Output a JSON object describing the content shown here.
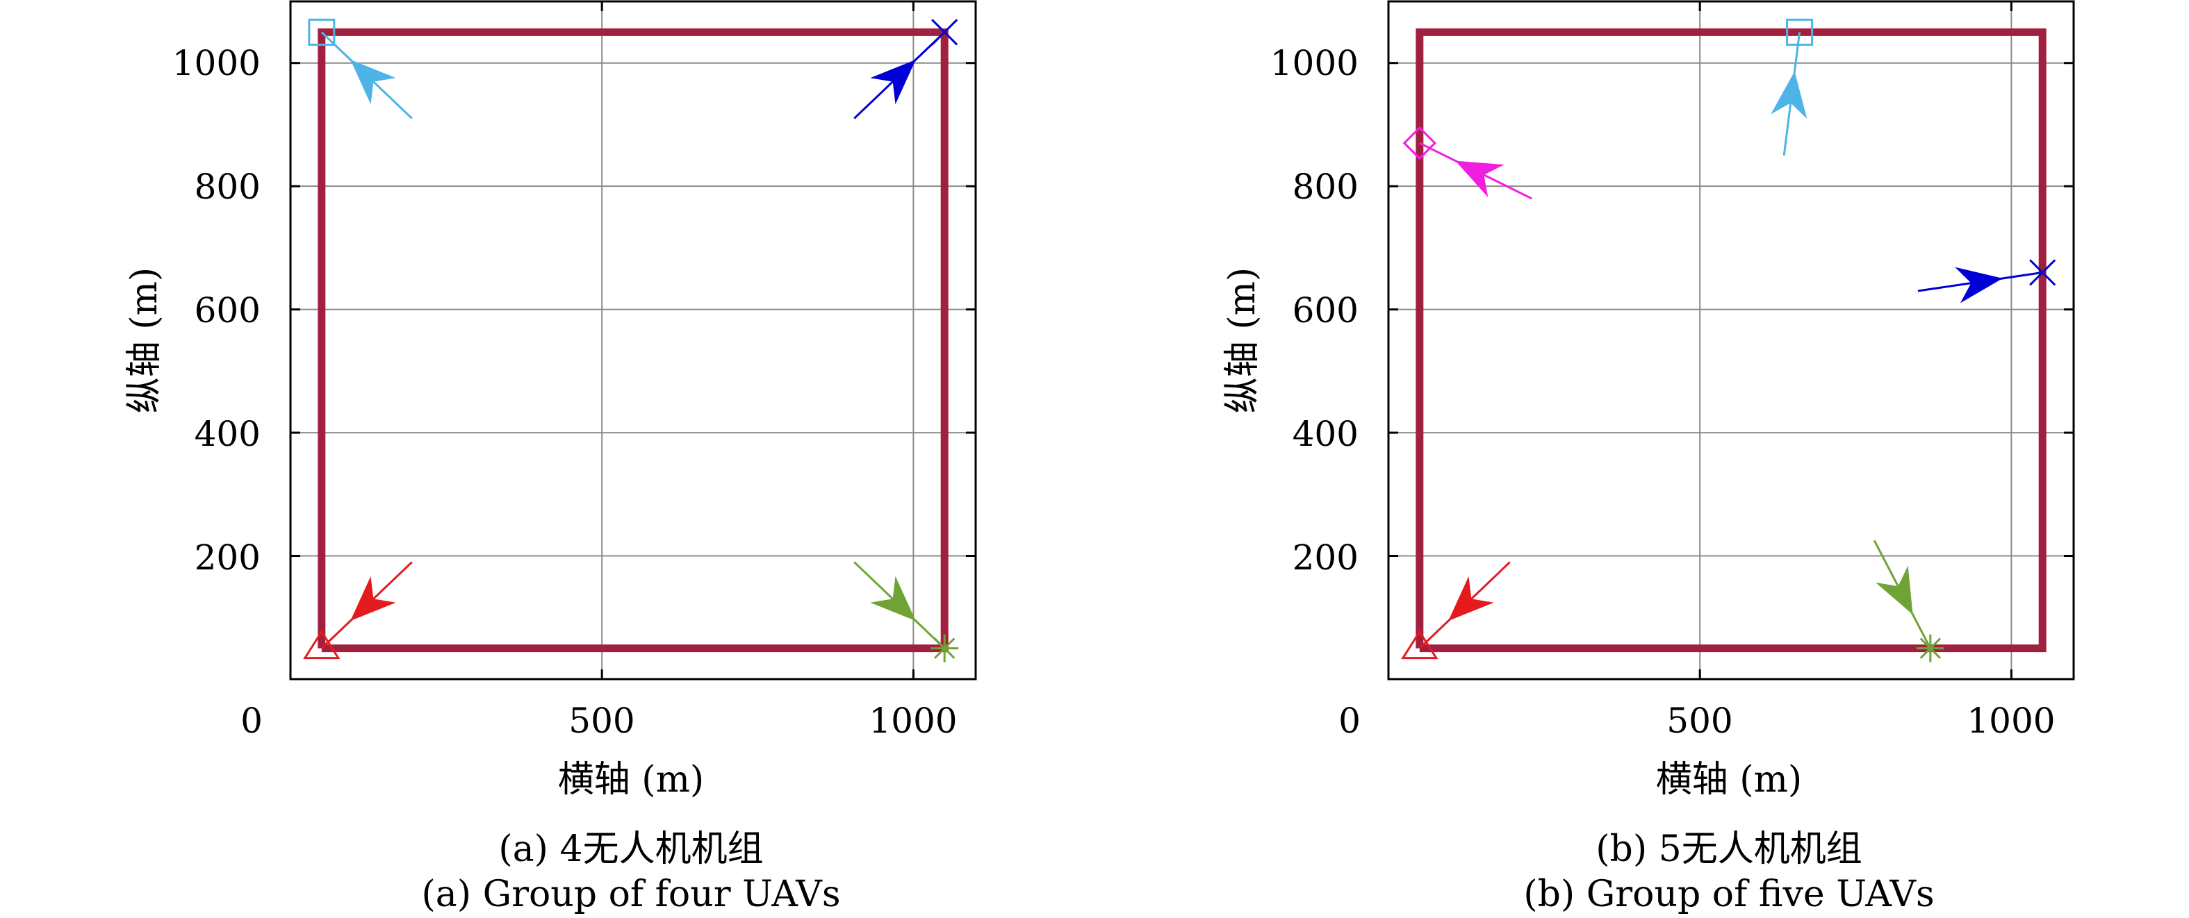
{
  "chart_data": [
    {
      "type": "line",
      "caption_cn": "(a) 4无人机机组",
      "caption_en": "(a) Group of four UAVs",
      "xlabel": "横轴 (m)",
      "ylabel": "纵轴 (m)",
      "xlim": [
        0,
        1100
      ],
      "ylim": [
        0,
        1100
      ],
      "x_ticks": [
        0,
        500,
        1000
      ],
      "y_ticks": [
        200,
        400,
        600,
        800,
        1000
      ],
      "grid": true,
      "boundary": {
        "color": "#A2203F",
        "x": [
          50,
          1050,
          1050,
          50,
          50
        ],
        "y": [
          50,
          50,
          1050,
          1050,
          50
        ]
      },
      "uavs": [
        {
          "marker": "triangle",
          "color": "#E41A1C",
          "position": [
            50,
            50
          ],
          "arrow_to": [
            195,
            190
          ]
        },
        {
          "marker": "square",
          "color": "#4EB3E6",
          "position": [
            50,
            1050
          ],
          "arrow_to": [
            195,
            910
          ]
        },
        {
          "marker": "x",
          "color": "#0000D6",
          "position": [
            1050,
            1050
          ],
          "arrow_to": [
            905,
            910
          ]
        },
        {
          "marker": "asterisk",
          "color": "#6FA336",
          "position": [
            1050,
            50
          ],
          "arrow_to": [
            905,
            190
          ]
        }
      ]
    },
    {
      "type": "line",
      "caption_cn": "(b) 5无人机机组",
      "caption_en": "(b) Group of five UAVs",
      "xlabel": "横轴 (m)",
      "ylabel": "纵轴 (m)",
      "xlim": [
        0,
        1100
      ],
      "ylim": [
        0,
        1100
      ],
      "x_ticks": [
        0,
        500,
        1000
      ],
      "y_ticks": [
        200,
        400,
        600,
        800,
        1000
      ],
      "grid": true,
      "boundary": {
        "color": "#A2203F",
        "x": [
          50,
          1050,
          1050,
          50,
          50
        ],
        "y": [
          50,
          50,
          1050,
          1050,
          50
        ]
      },
      "uavs": [
        {
          "marker": "triangle",
          "color": "#E41A1C",
          "position": [
            50,
            50
          ],
          "arrow_to": [
            195,
            190
          ]
        },
        {
          "marker": "diamond",
          "color": "#F01EE0",
          "position": [
            50,
            870
          ],
          "arrow_to": [
            230,
            780
          ]
        },
        {
          "marker": "square",
          "color": "#4EB3E6",
          "position": [
            660,
            1050
          ],
          "arrow_to": [
            635,
            850
          ]
        },
        {
          "marker": "x",
          "color": "#0000D6",
          "position": [
            1050,
            660
          ],
          "arrow_to": [
            850,
            630
          ]
        },
        {
          "marker": "asterisk",
          "color": "#6FA336",
          "position": [
            870,
            50
          ],
          "arrow_to": [
            780,
            225
          ]
        }
      ]
    }
  ]
}
